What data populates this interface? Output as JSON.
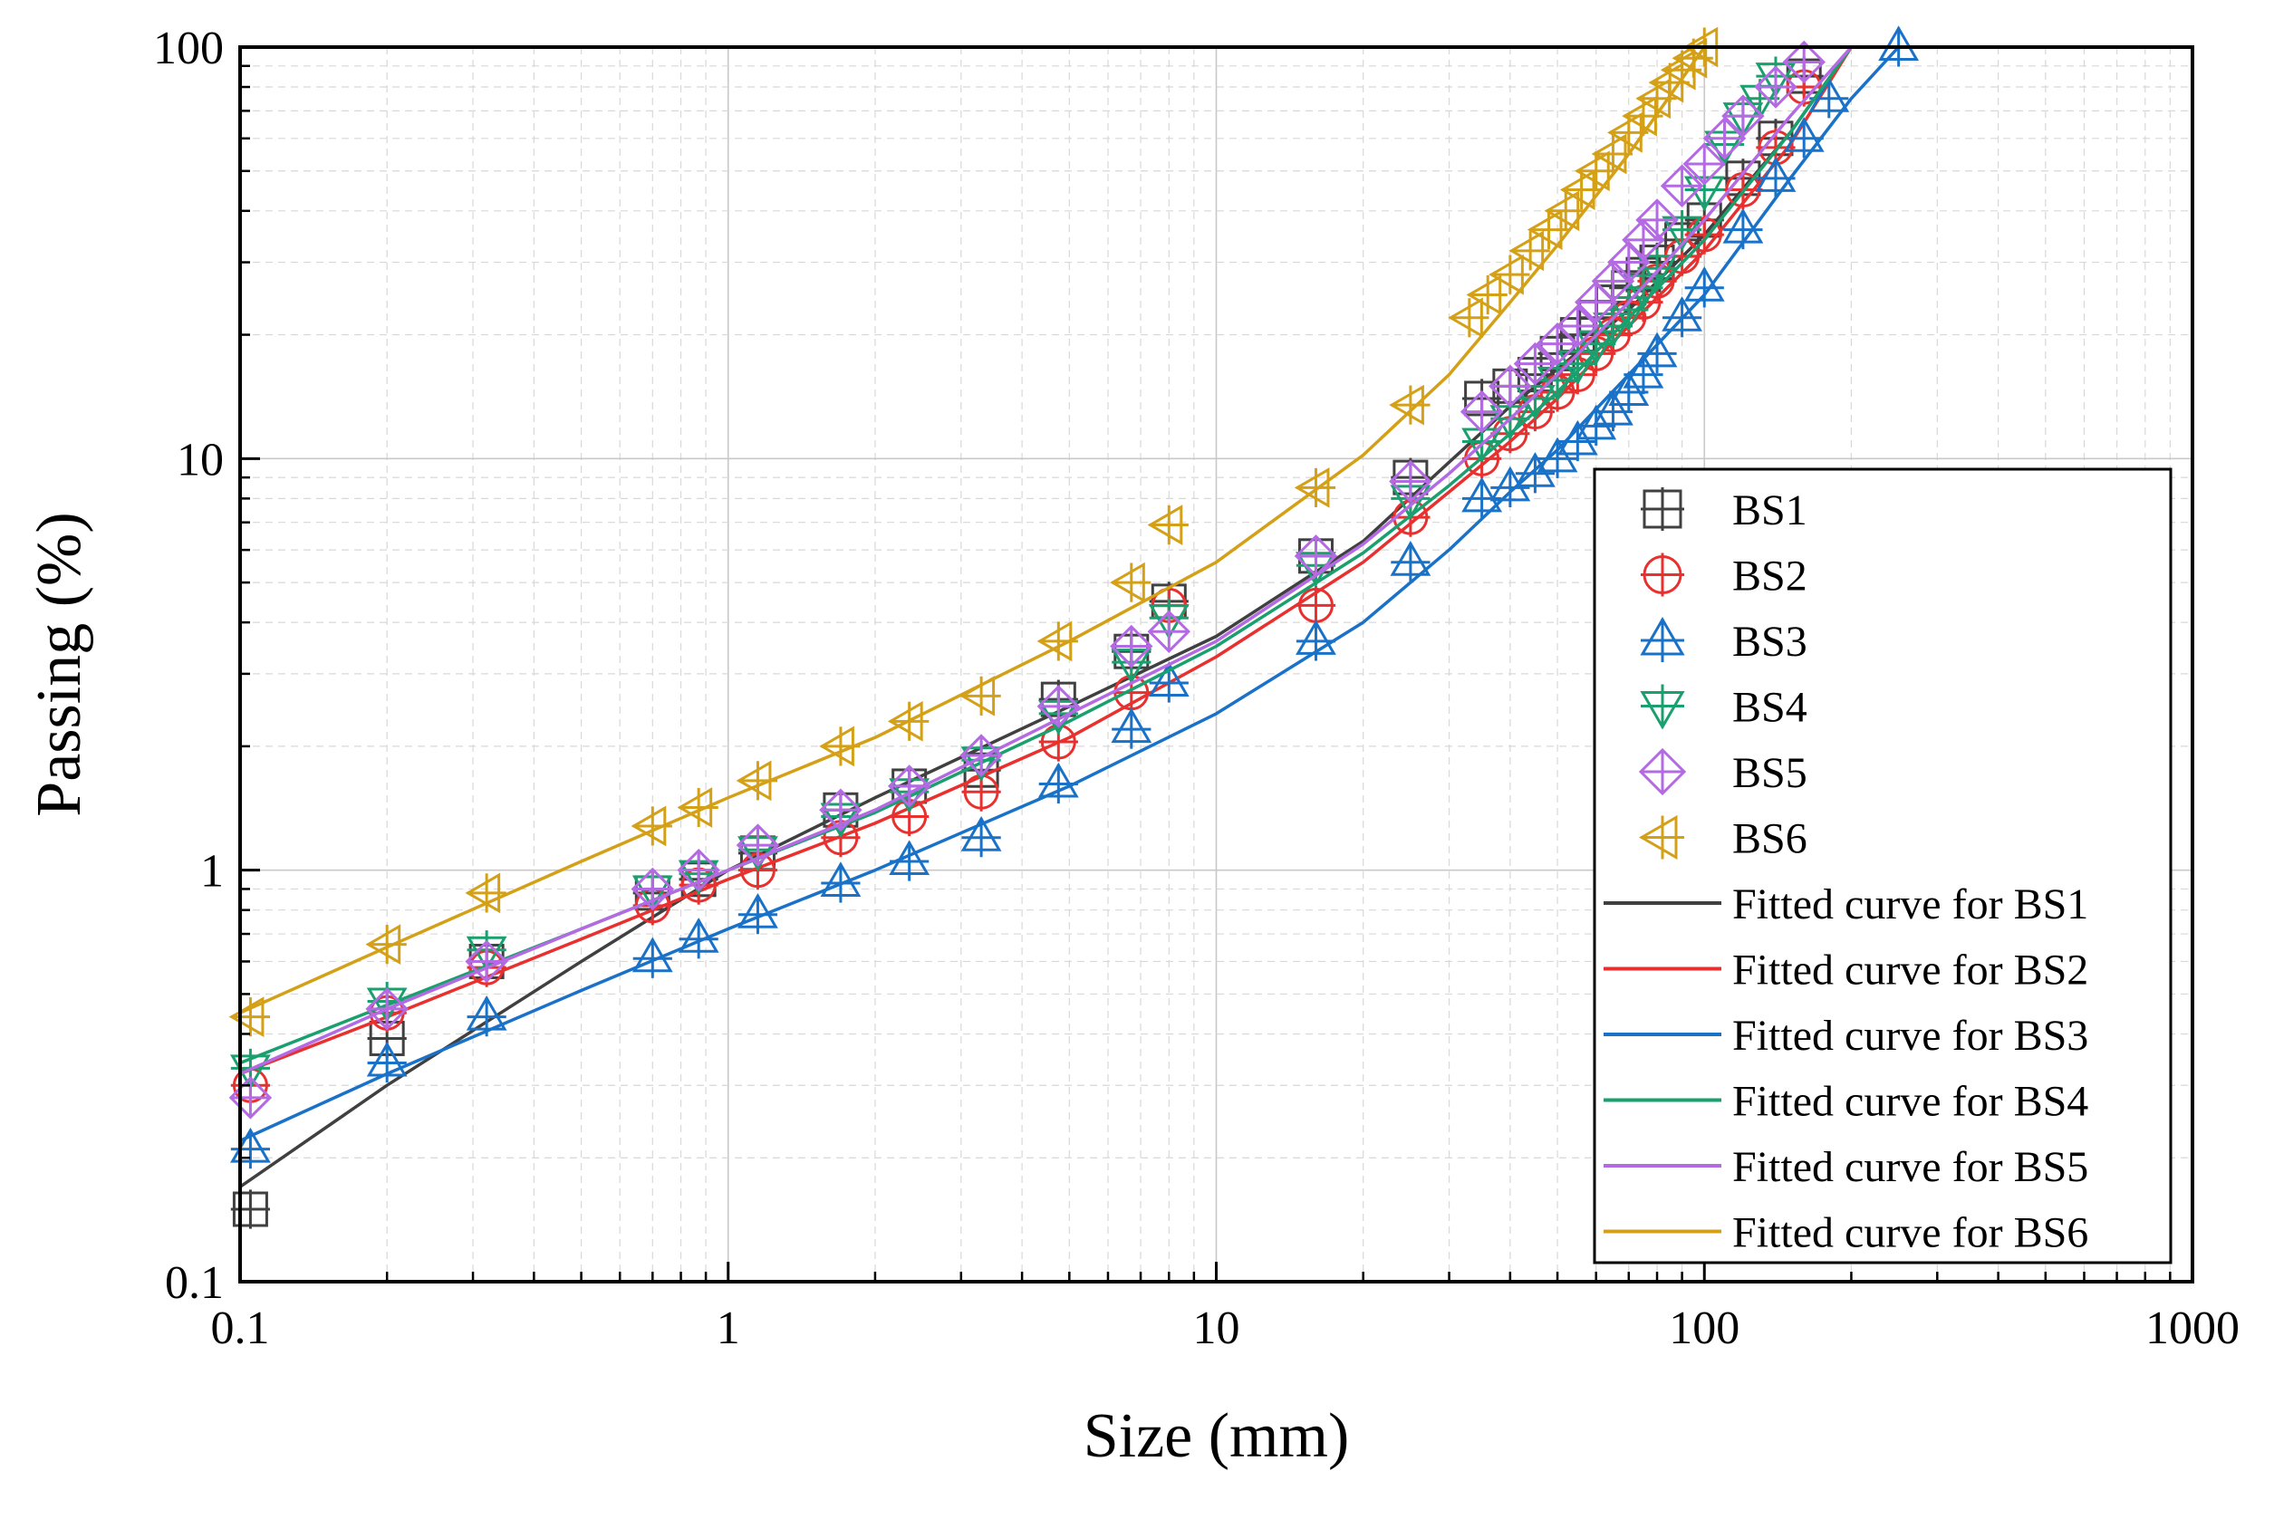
{
  "chart_data": {
    "type": "scatter",
    "title": "",
    "xlabel": "Size (mm)",
    "ylabel": "Passing (%)",
    "xscale": "log",
    "yscale": "log",
    "xlim": [
      0.1,
      1000
    ],
    "ylim": [
      0.1,
      100
    ],
    "x_ticks": [
      0.1,
      1,
      10,
      100,
      1000
    ],
    "x_tick_labels": [
      "0.1",
      "1",
      "10",
      "100",
      "1000"
    ],
    "y_ticks": [
      0.1,
      1,
      10,
      100
    ],
    "y_tick_labels": [
      "0.1",
      "1",
      "10",
      "100"
    ],
    "grid": true,
    "legend_position": "lower-right",
    "series": [
      {
        "name": "BS1",
        "color": "#404040",
        "marker": "square-plus",
        "fit_name": "Fitted curve for BS1",
        "x": [
          0.105,
          0.2,
          0.32,
          0.7,
          0.87,
          1.15,
          1.7,
          2.35,
          3.3,
          4.75,
          6.7,
          8.0,
          16,
          25,
          35,
          40,
          45,
          50,
          55,
          60,
          65,
          70,
          75,
          80,
          90,
          100,
          120,
          140,
          160
        ],
        "y": [
          0.15,
          0.39,
          0.6,
          0.88,
          0.95,
          1.1,
          1.4,
          1.6,
          1.75,
          2.6,
          3.4,
          4.5,
          5.8,
          9.0,
          14,
          15,
          16,
          18,
          20,
          22,
          24,
          26,
          28,
          30,
          34,
          38,
          48,
          60,
          85
        ],
        "fit_x": [
          0.1,
          0.2,
          0.5,
          1,
          2,
          5,
          10,
          20,
          30,
          40,
          50,
          70,
          100,
          150,
          200
        ],
        "fit_y": [
          0.17,
          0.3,
          0.6,
          1.0,
          1.5,
          2.5,
          3.7,
          6.3,
          9.8,
          13.4,
          16.5,
          23,
          35,
          62,
          100
        ]
      },
      {
        "name": "BS2",
        "color": "#e8312f",
        "marker": "circle-plus",
        "fit_name": "Fitted curve for BS2",
        "x": [
          0.105,
          0.2,
          0.32,
          0.7,
          0.87,
          1.15,
          1.7,
          2.35,
          3.3,
          4.75,
          6.7,
          8.0,
          16,
          25,
          35,
          40,
          45,
          50,
          55,
          60,
          65,
          70,
          75,
          80,
          90,
          100,
          120,
          140,
          160
        ],
        "y": [
          0.3,
          0.45,
          0.58,
          0.82,
          0.92,
          1.0,
          1.2,
          1.35,
          1.55,
          2.05,
          2.7,
          4.4,
          4.4,
          7.2,
          10,
          11.5,
          13,
          14.5,
          16,
          18,
          20,
          22,
          24,
          27,
          31,
          35,
          45,
          57,
          80
        ],
        "fit_x": [
          0.1,
          0.2,
          0.5,
          1,
          2,
          5,
          10,
          20,
          30,
          40,
          50,
          70,
          100,
          150,
          200
        ],
        "fit_y": [
          0.32,
          0.44,
          0.68,
          0.95,
          1.3,
          2.1,
          3.3,
          5.6,
          8.3,
          11,
          14,
          21,
          32,
          58,
          100
        ]
      },
      {
        "name": "BS3",
        "color": "#1a72c8",
        "marker": "triangle-up-plus",
        "fit_name": "Fitted curve for BS3",
        "x": [
          0.105,
          0.2,
          0.32,
          0.7,
          0.87,
          1.15,
          1.7,
          2.35,
          3.3,
          4.75,
          6.7,
          8.0,
          16,
          25,
          35,
          40,
          45,
          50,
          55,
          60,
          65,
          70,
          75,
          80,
          90,
          100,
          120,
          140,
          160,
          180,
          250
        ],
        "y": [
          0.21,
          0.34,
          0.44,
          0.61,
          0.68,
          0.78,
          0.93,
          1.05,
          1.2,
          1.62,
          2.2,
          2.85,
          3.6,
          5.6,
          8,
          8.5,
          9.2,
          10,
          11,
          12,
          13,
          14.5,
          16,
          18,
          22,
          26,
          36,
          48,
          60,
          75,
          100
        ],
        "fit_x": [
          0.1,
          0.2,
          0.5,
          1,
          2,
          5,
          10,
          20,
          30,
          40,
          50,
          70,
          100,
          150,
          200,
          250
        ],
        "fit_y": [
          0.22,
          0.32,
          0.51,
          0.72,
          1.0,
          1.6,
          2.4,
          4.0,
          6.0,
          8.3,
          10.5,
          16,
          25,
          48,
          75,
          100
        ]
      },
      {
        "name": "BS4",
        "color": "#1aa06e",
        "marker": "triangle-down-plus",
        "fit_name": "Fitted curve for BS4",
        "x": [
          0.105,
          0.2,
          0.32,
          0.7,
          0.87,
          1.15,
          1.7,
          2.35,
          3.3,
          4.75,
          6.7,
          8.0,
          16,
          25,
          35,
          40,
          45,
          50,
          55,
          60,
          65,
          70,
          75,
          80,
          90,
          100,
          110,
          120,
          130,
          140
        ],
        "y": [
          0.33,
          0.48,
          0.64,
          0.9,
          0.98,
          1.12,
          1.35,
          1.55,
          1.85,
          2.4,
          3.2,
          4.1,
          5.5,
          8.0,
          11,
          12.5,
          14,
          15.5,
          17,
          19,
          21,
          23,
          26,
          29,
          36,
          45,
          58,
          68,
          75,
          85
        ],
        "fit_x": [
          0.1,
          0.2,
          0.5,
          1,
          2,
          5,
          10,
          20,
          30,
          40,
          50,
          70,
          100,
          150,
          200
        ],
        "fit_y": [
          0.34,
          0.47,
          0.72,
          1.0,
          1.38,
          2.3,
          3.5,
          5.9,
          8.6,
          11.5,
          14.5,
          22,
          34,
          62,
          100
        ]
      },
      {
        "name": "BS5",
        "color": "#b36ae2",
        "marker": "diamond-plus",
        "fit_name": "Fitted curve for BS5",
        "x": [
          0.105,
          0.2,
          0.32,
          0.7,
          0.87,
          1.15,
          1.7,
          2.35,
          3.3,
          4.75,
          6.7,
          8.0,
          16,
          25,
          35,
          40,
          45,
          50,
          55,
          60,
          65,
          70,
          75,
          80,
          90,
          100,
          110,
          120,
          140,
          160
        ],
        "y": [
          0.28,
          0.46,
          0.6,
          0.9,
          1.0,
          1.15,
          1.4,
          1.6,
          1.9,
          2.5,
          3.5,
          3.8,
          5.8,
          8.8,
          13,
          15,
          17,
          19,
          21,
          24,
          27,
          30,
          34,
          38,
          46,
          52,
          60,
          68,
          80,
          92
        ],
        "fit_x": [
          0.1,
          0.2,
          0.5,
          1,
          2,
          5,
          10,
          20,
          30,
          40,
          50,
          70,
          100,
          150,
          200
        ],
        "fit_y": [
          0.32,
          0.46,
          0.72,
          1.0,
          1.4,
          2.4,
          3.6,
          6.2,
          9.2,
          12.5,
          16,
          24,
          38,
          68,
          100
        ]
      },
      {
        "name": "BS6",
        "color": "#d4a017",
        "marker": "triangle-left-plus",
        "fit_name": "Fitted curve for BS6",
        "x": [
          0.105,
          0.2,
          0.32,
          0.7,
          0.87,
          1.15,
          1.7,
          2.35,
          3.3,
          4.75,
          6.7,
          8.0,
          16,
          25,
          33,
          36,
          40,
          44,
          48,
          52,
          56,
          60,
          65,
          70,
          75,
          80,
          85,
          90,
          95,
          100
        ],
        "y": [
          0.44,
          0.66,
          0.88,
          1.28,
          1.42,
          1.65,
          2.0,
          2.3,
          2.65,
          3.6,
          5.0,
          6.9,
          8.5,
          13.5,
          22,
          25,
          28,
          32,
          36,
          40,
          45,
          50,
          55,
          62,
          68,
          75,
          82,
          88,
          94,
          100
        ],
        "fit_x": [
          0.1,
          0.2,
          0.5,
          1,
          2,
          5,
          10,
          20,
          30,
          40,
          50,
          70,
          100
        ],
        "fit_y": [
          0.45,
          0.65,
          1.05,
          1.5,
          2.1,
          3.6,
          5.6,
          10.2,
          16,
          24,
          33,
          55,
          100
        ]
      }
    ]
  }
}
